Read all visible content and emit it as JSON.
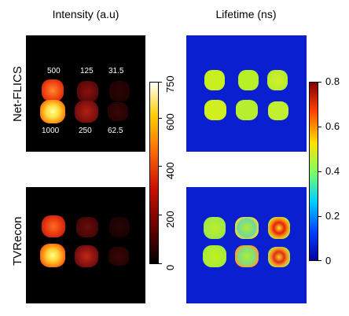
{
  "titles": {
    "intensity": "Intensity (a.u)",
    "lifetime": "Lifetime (ns)"
  },
  "rows": {
    "top": "Net-FLICS",
    "bottom": "TVRecon"
  },
  "intensity_labels": [
    "500",
    "125",
    "31.5",
    "1000",
    "250",
    "62.5"
  ],
  "intensity_colorbar": {
    "ticks": [
      "0",
      "200",
      "400",
      "600",
      "750"
    ],
    "colors": [
      "#000000",
      "#6a0000",
      "#d01000",
      "#ff6a00",
      "#ffd000",
      "#ffffff"
    ]
  },
  "lifetime_colorbar": {
    "ticks": [
      "0",
      "0.2",
      "0.4",
      "0.6",
      "0.8"
    ],
    "colors": [
      "#0000a0",
      "#0040ff",
      "#00d0ff",
      "#80ff60",
      "#ffe000",
      "#ff4000",
      "#800000"
    ]
  }
}
